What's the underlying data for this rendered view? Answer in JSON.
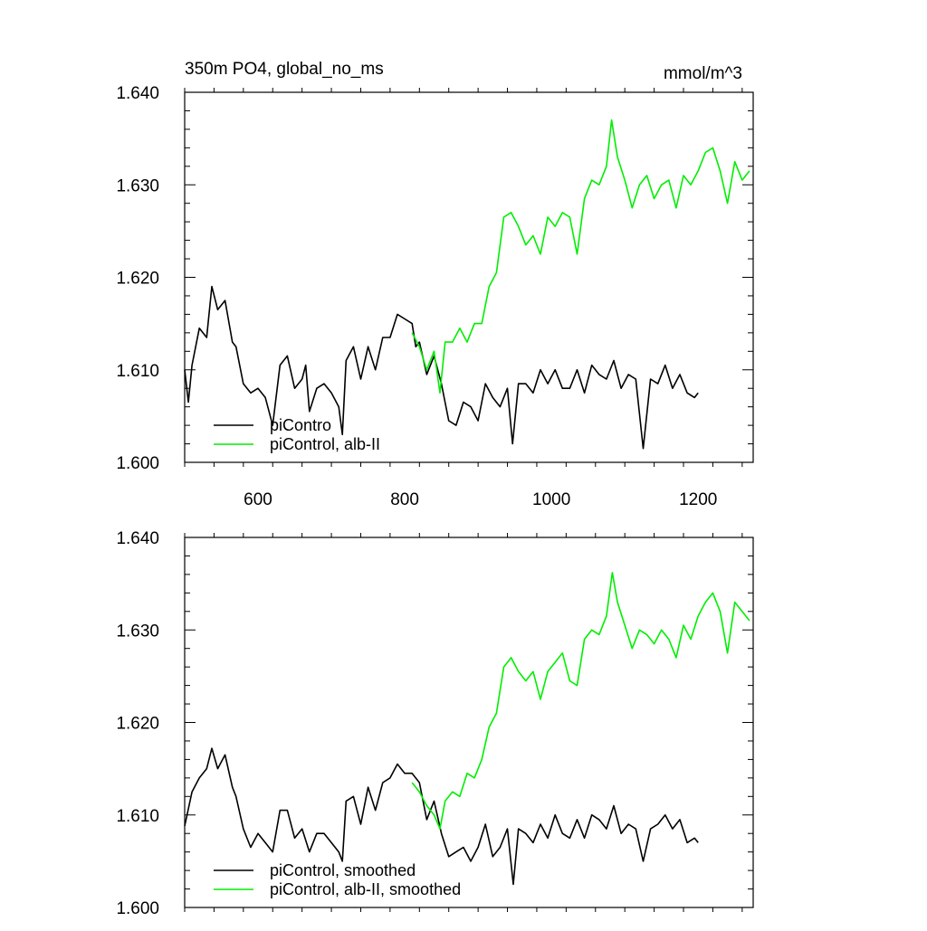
{
  "header": {
    "title": "350m PO4, global_no_ms",
    "units": "mmol/m^3"
  },
  "chart_data": [
    {
      "type": "line",
      "xlim": [
        500,
        1275
      ],
      "ylim": [
        1.6,
        1.64
      ],
      "xticks": [
        600,
        800,
        1000,
        1200
      ],
      "xtick_labels": [
        "600",
        "800",
        "1000",
        "1200"
      ],
      "yticks": [
        1.6,
        1.61,
        1.62,
        1.63,
        1.64
      ],
      "ytick_labels": [
        "1.600",
        "1.610",
        "1.620",
        "1.630",
        "1.640"
      ],
      "legend_position": "bottom-left",
      "series": [
        {
          "name": "piContro",
          "color": "#000000",
          "x": [
            500,
            505,
            510,
            520,
            530,
            537,
            545,
            555,
            565,
            570,
            580,
            590,
            600,
            610,
            620,
            630,
            640,
            650,
            660,
            665,
            670,
            680,
            690,
            700,
            710,
            715,
            720,
            730,
            740,
            750,
            760,
            770,
            780,
            790,
            800,
            810,
            815,
            820,
            830,
            840,
            850,
            860,
            870,
            880,
            890,
            900,
            910,
            920,
            930,
            940,
            947,
            955,
            965,
            975,
            985,
            995,
            1005,
            1015,
            1025,
            1035,
            1045,
            1055,
            1065,
            1075,
            1085,
            1095,
            1105,
            1115,
            1125,
            1135,
            1145,
            1155,
            1165,
            1175,
            1185,
            1195,
            1200
          ],
          "y": [
            1.61,
            1.6065,
            1.6105,
            1.6145,
            1.6135,
            1.619,
            1.6165,
            1.6175,
            1.613,
            1.6125,
            1.6085,
            1.6075,
            1.608,
            1.607,
            1.604,
            1.6105,
            1.6115,
            1.608,
            1.609,
            1.6105,
            1.6055,
            1.608,
            1.6085,
            1.6075,
            1.606,
            1.603,
            1.611,
            1.6125,
            1.609,
            1.6125,
            1.61,
            1.6135,
            1.6135,
            1.616,
            1.6155,
            1.615,
            1.6125,
            1.613,
            1.6095,
            1.6115,
            1.6085,
            1.6045,
            1.604,
            1.6065,
            1.606,
            1.6045,
            1.6085,
            1.607,
            1.606,
            1.608,
            1.602,
            1.6085,
            1.6085,
            1.6075,
            1.61,
            1.6085,
            1.61,
            1.608,
            1.608,
            1.61,
            1.6075,
            1.6105,
            1.6095,
            1.609,
            1.611,
            1.608,
            1.6095,
            1.609,
            1.6015,
            1.609,
            1.6085,
            1.6105,
            1.608,
            1.6095,
            1.6075,
            1.607,
            1.6075
          ]
        },
        {
          "name": "piControl, alb-II",
          "color": "#00ee00",
          "x": [
            810,
            820,
            830,
            840,
            848,
            855,
            865,
            875,
            885,
            895,
            905,
            915,
            925,
            935,
            945,
            955,
            965,
            975,
            985,
            995,
            1005,
            1015,
            1025,
            1035,
            1045,
            1055,
            1065,
            1075,
            1082,
            1090,
            1100,
            1110,
            1120,
            1130,
            1140,
            1150,
            1160,
            1170,
            1180,
            1190,
            1200,
            1210,
            1220,
            1230,
            1240,
            1250,
            1260,
            1270
          ],
          "y": [
            1.614,
            1.6125,
            1.61,
            1.612,
            1.6075,
            1.613,
            1.613,
            1.6145,
            1.613,
            1.615,
            1.615,
            1.619,
            1.6205,
            1.6265,
            1.627,
            1.6255,
            1.6235,
            1.6245,
            1.6225,
            1.6265,
            1.6255,
            1.627,
            1.6265,
            1.6225,
            1.6285,
            1.6305,
            1.63,
            1.632,
            1.637,
            1.633,
            1.6305,
            1.6275,
            1.63,
            1.631,
            1.6285,
            1.63,
            1.6305,
            1.6275,
            1.631,
            1.63,
            1.6315,
            1.6335,
            1.634,
            1.6315,
            1.628,
            1.6325,
            1.6305,
            1.6315
          ]
        }
      ]
    },
    {
      "type": "line",
      "xlim": [
        500,
        1275
      ],
      "ylim": [
        1.6,
        1.64
      ],
      "xticks": [
        600,
        800,
        1000,
        1200
      ],
      "yticks": [
        1.6,
        1.61,
        1.62,
        1.63,
        1.64
      ],
      "ytick_labels": [
        "1.600",
        "1.610",
        "1.620",
        "1.630",
        "1.640"
      ],
      "legend_position": "bottom-left",
      "series": [
        {
          "name": "piControl, smoothed",
          "color": "#000000",
          "x": [
            500,
            510,
            520,
            530,
            537,
            545,
            555,
            565,
            570,
            580,
            590,
            600,
            610,
            620,
            630,
            640,
            650,
            660,
            670,
            680,
            690,
            700,
            710,
            715,
            720,
            730,
            740,
            750,
            760,
            770,
            780,
            790,
            800,
            810,
            820,
            830,
            840,
            850,
            860,
            870,
            880,
            890,
            900,
            910,
            920,
            930,
            940,
            948,
            955,
            965,
            975,
            985,
            995,
            1005,
            1015,
            1025,
            1035,
            1045,
            1055,
            1065,
            1075,
            1085,
            1095,
            1105,
            1115,
            1125,
            1135,
            1145,
            1155,
            1165,
            1175,
            1185,
            1195,
            1200
          ],
          "y": [
            1.6088,
            1.6125,
            1.614,
            1.615,
            1.6172,
            1.615,
            1.6165,
            1.613,
            1.612,
            1.6085,
            1.6065,
            1.608,
            1.607,
            1.606,
            1.6105,
            1.6105,
            1.6075,
            1.6085,
            1.606,
            1.608,
            1.608,
            1.607,
            1.606,
            1.605,
            1.6115,
            1.612,
            1.609,
            1.613,
            1.6105,
            1.6135,
            1.614,
            1.6155,
            1.6145,
            1.6145,
            1.6135,
            1.6095,
            1.6115,
            1.608,
            1.6055,
            1.606,
            1.6065,
            1.605,
            1.6065,
            1.609,
            1.6055,
            1.6065,
            1.6085,
            1.6025,
            1.6085,
            1.608,
            1.607,
            1.609,
            1.6075,
            1.61,
            1.608,
            1.6075,
            1.6095,
            1.6075,
            1.61,
            1.6095,
            1.6085,
            1.611,
            1.608,
            1.609,
            1.6085,
            1.605,
            1.6085,
            1.609,
            1.61,
            1.6085,
            1.6095,
            1.607,
            1.6075,
            1.607
          ]
        },
        {
          "name": "piControl, alb-II, smoothed",
          "color": "#00ee00",
          "x": [
            810,
            820,
            830,
            840,
            848,
            855,
            865,
            875,
            885,
            895,
            905,
            915,
            925,
            935,
            945,
            955,
            965,
            975,
            985,
            995,
            1005,
            1015,
            1025,
            1035,
            1045,
            1055,
            1065,
            1075,
            1083,
            1090,
            1100,
            1110,
            1120,
            1130,
            1140,
            1150,
            1160,
            1170,
            1180,
            1190,
            1200,
            1210,
            1220,
            1230,
            1240,
            1250,
            1260,
            1270
          ],
          "y": [
            1.6135,
            1.6125,
            1.611,
            1.61,
            1.6085,
            1.6115,
            1.6125,
            1.612,
            1.6145,
            1.614,
            1.616,
            1.6195,
            1.621,
            1.626,
            1.627,
            1.6255,
            1.6245,
            1.6255,
            1.6225,
            1.6255,
            1.6265,
            1.6275,
            1.6245,
            1.624,
            1.629,
            1.63,
            1.6295,
            1.6315,
            1.6362,
            1.633,
            1.6305,
            1.628,
            1.63,
            1.6295,
            1.6285,
            1.63,
            1.629,
            1.627,
            1.6305,
            1.629,
            1.6315,
            1.633,
            1.634,
            1.632,
            1.6275,
            1.633,
            1.632,
            1.631
          ]
        }
      ]
    }
  ]
}
